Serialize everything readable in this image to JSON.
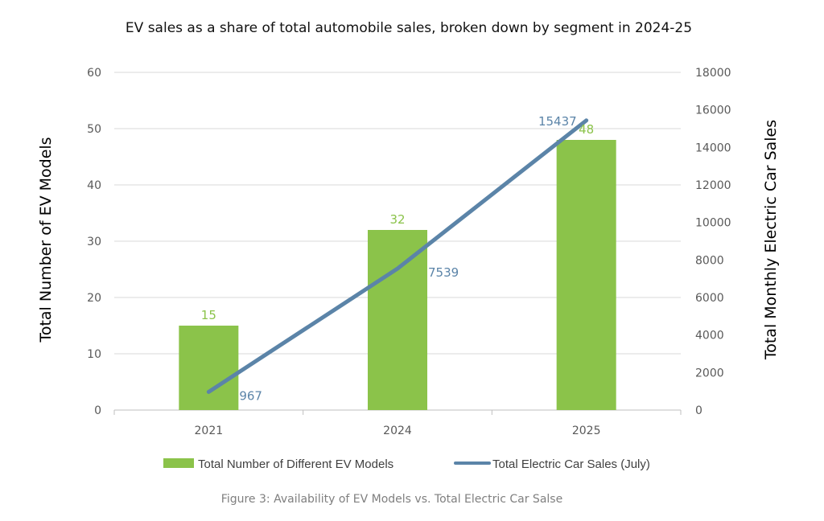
{
  "title": "EV sales as a share of total automobile sales, broken down by segment in 2024-25",
  "caption": "Figure 3: Availability of EV Models vs. Total Electric Car Salse",
  "colors": {
    "bar": "#8bc34a",
    "line": "#5b84a8",
    "bar_label": "#8bc34a",
    "line_label": "#5b84a8"
  },
  "chart_data": {
    "type": "bar",
    "categories": [
      "2021",
      "2024",
      "2025"
    ],
    "series": [
      {
        "name": "Total Number of Different EV Models",
        "type": "bar",
        "axis": "left",
        "values": [
          15,
          32,
          48
        ]
      },
      {
        "name": "Total Electric Car Sales (July)",
        "type": "line",
        "axis": "right",
        "values": [
          967,
          7539,
          15437
        ]
      }
    ],
    "ylabel": "Total Number of EV Models",
    "y2label": "Total Monthly Electric Car Sales",
    "ylim": [
      0,
      60
    ],
    "y2lim": [
      0,
      18000
    ],
    "yticks": [
      0,
      10,
      20,
      30,
      40,
      50,
      60
    ],
    "y2ticks": [
      0,
      2000,
      4000,
      6000,
      8000,
      10000,
      12000,
      14000,
      16000,
      18000
    ],
    "grid": true,
    "legend_position": "bottom"
  }
}
